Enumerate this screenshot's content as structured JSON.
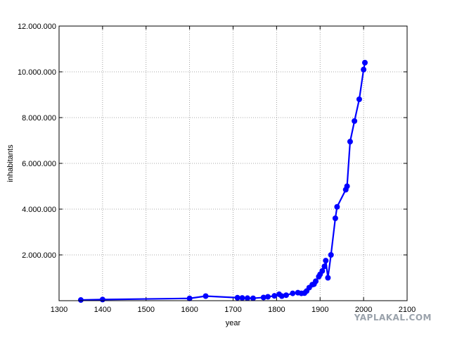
{
  "chart_data": {
    "type": "line",
    "xlabel": "year",
    "ylabel": "inhabitants",
    "xlim": [
      1300,
      2100
    ],
    "ylim": [
      0,
      12000000
    ],
    "xticks": [
      1300,
      1400,
      1500,
      1600,
      1700,
      1800,
      1900,
      2000,
      2100
    ],
    "yticks": [
      2000000,
      4000000,
      6000000,
      8000000,
      10000000,
      12000000
    ],
    "ytick_labels": [
      "2.000.000",
      "4.000.000",
      "6.000.000",
      "8.000.000",
      "10.000.000",
      "12.000.000"
    ],
    "grid": true,
    "line_color": "#0000ff",
    "series": [
      {
        "x": [
          1350,
          1400,
          1600,
          1637,
          1710,
          1721,
          1733,
          1746,
          1770,
          1780,
          1795,
          1806,
          1812,
          1822,
          1837,
          1849,
          1857,
          1864,
          1869,
          1875,
          1882,
          1886,
          1890,
          1897,
          1900,
          1905,
          1910,
          1913,
          1918,
          1925,
          1935,
          1939,
          1959,
          1962,
          1969,
          1979,
          1990,
          2000,
          2003
        ],
        "y": [
          30000,
          50000,
          100000,
          200000,
          130000,
          120000,
          110000,
          105000,
          140000,
          170000,
          210000,
          280000,
          200000,
          240000,
          320000,
          350000,
          320000,
          330000,
          420000,
          570000,
          700000,
          720000,
          850000,
          1050000,
          1150000,
          1300000,
          1500000,
          1750000,
          1000000,
          2000000,
          3600000,
          4100000,
          4850000,
          5000000,
          6950000,
          7850000,
          8800000,
          10100000,
          10400000
        ]
      }
    ]
  },
  "watermark": "YAPLAKAL.COM"
}
